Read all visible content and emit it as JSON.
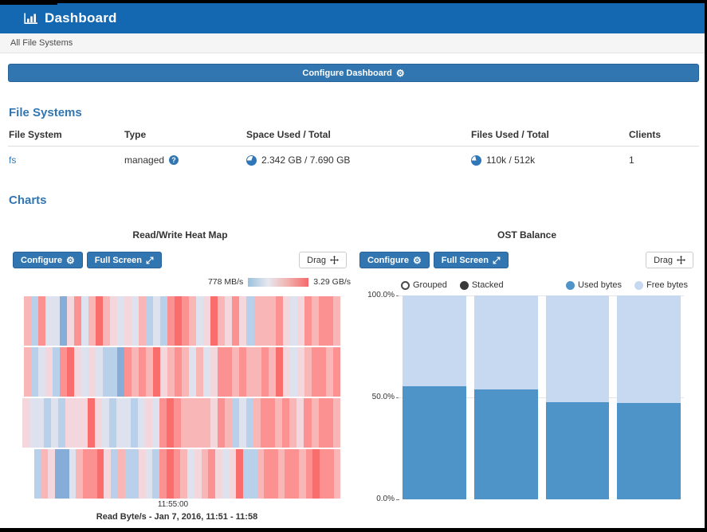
{
  "colors": {
    "navbar_bg": "#1467b1",
    "primary_button": "#3276b1",
    "primary_button_border": "#2a639a",
    "heading_text": "#3276b1",
    "link_text": "#3276b1",
    "breadcrumb_bg": "#f5f5f5",
    "pie_blue": "#2f77b8",
    "used_bar": "#4f94c8",
    "free_bar": "#c6d9f0"
  },
  "icons": {
    "gear": "⚙",
    "help": "?"
  },
  "navbar": {
    "title": "Dashboard"
  },
  "breadcrumb": {
    "label": "All File Systems"
  },
  "toolbar": {
    "configure_dashboard_label": "Configure Dashboard"
  },
  "file_systems": {
    "heading": "File Systems",
    "columns": [
      "File System",
      "Type",
      "Space Used / Total",
      "Files Used / Total",
      "Clients"
    ],
    "rows": [
      {
        "name": "fs",
        "type": "managed",
        "space": "2.342 GB / 7.690 GB",
        "space_used_pct": 30,
        "files": "110k / 512k",
        "files_used_pct": 21,
        "clients": "1"
      }
    ]
  },
  "charts": {
    "heading": "Charts",
    "buttons": {
      "configure": "Configure",
      "full_screen": "Full Screen",
      "drag": "Drag"
    }
  },
  "chart_data": [
    {
      "type": "heatmap",
      "title": "Read/Write Heat Map",
      "caption": "Read Byte/s - Jan 7, 2016, 11:51 - 11:58",
      "x_ticks": [
        "11:55:00"
      ],
      "legend": {
        "min": "778 MB/s",
        "max": "3.29 GB/s",
        "gradient": [
          "#9bc1de",
          "#e6e8ef",
          "#f2b0ad",
          "#f4696b"
        ]
      },
      "palette": {
        "B2": "#85add8",
        "B1": "#b9d0ea",
        "L": "#dde2ee",
        "P1": "#f3d7dc",
        "P2": "#f9b6b6",
        "R1": "#fb9191",
        "R2": "#fa6d6d"
      },
      "rows": [
        [
          "P2",
          "B1",
          "R1",
          "L",
          "L",
          "B2",
          "P1",
          "R1",
          "L",
          "P2",
          "R2",
          "P2",
          "P1",
          "L",
          "P1",
          "L",
          "P2",
          "B1",
          "L",
          "B1",
          "R1",
          "R2",
          "R1",
          "P2",
          "L",
          "P1",
          "R2",
          "P2",
          "P1",
          "R1",
          "P1",
          "B1",
          "P2",
          "P2",
          "P2",
          "R1",
          "P1",
          "L",
          "P1",
          "R1",
          "P2",
          "R1",
          "R1",
          "P2"
        ],
        [
          "P2",
          "B1",
          "L",
          "P1",
          "B1",
          "R1",
          "R2",
          "P1",
          "L",
          "P1",
          "L",
          "B1",
          "B1",
          "B2",
          "R1",
          "P2",
          "R1",
          "P2",
          "R2",
          "P1",
          "P2",
          "R1",
          "P2",
          "L",
          "P2",
          "L",
          "P1",
          "R1",
          "R1",
          "P2",
          "R1",
          "P2",
          "P2",
          "R1",
          "P2",
          "R2",
          "P1",
          "L",
          "P1",
          "P2",
          "R1",
          "R1",
          "P2",
          "R1"
        ],
        [
          "P1",
          "L",
          "L",
          "B1",
          "L",
          "B1",
          "P1",
          "P1",
          "P1",
          "R2",
          "P1",
          "L",
          "B1",
          "L",
          "L",
          "B1",
          "L",
          "P1",
          "L",
          "R1",
          "R2",
          "R1",
          "P2",
          "P2",
          "P2",
          "P2",
          "P1",
          "R1",
          "P2",
          "B1",
          "L",
          "B1",
          "P2",
          "R1",
          "R1",
          "P2",
          "R1",
          "P2",
          "P1",
          "R1",
          "P2",
          "R1",
          "R1",
          "P2"
        ],
        [
          "B1",
          "P2",
          "P1",
          "B2",
          "B2",
          "L",
          "P2",
          "R1",
          "R1",
          "R2",
          "P1",
          "B1",
          "P2",
          "B1",
          "B1",
          "P1",
          "L",
          "B1",
          "R1",
          "R2",
          "R1",
          "P2",
          "L",
          "P1",
          "P2",
          "R1",
          "P1",
          "L",
          "P1",
          "R2",
          "B1",
          "B1",
          "P2",
          "R1",
          "R1",
          "P2",
          "R1",
          "R1",
          "P2",
          "R1",
          "R2",
          "R1",
          "R1",
          "P2"
        ]
      ],
      "row_left": [
        20,
        20,
        18,
        33
      ],
      "row_width": [
        397,
        397,
        399,
        384
      ]
    },
    {
      "type": "bar",
      "stacked": true,
      "title": "OST Balance",
      "controls": {
        "grouped": "Grouped",
        "stacked": "Stacked"
      },
      "categories": [
        "",
        "",
        "",
        ""
      ],
      "series": [
        {
          "name": "Used bytes",
          "color": "#4f94c8",
          "values": [
            55.5,
            53.8,
            47.8,
            47.3
          ]
        },
        {
          "name": "Free bytes",
          "color": "#c6d9f0",
          "values": [
            44.5,
            46.2,
            52.2,
            52.7
          ]
        }
      ],
      "ylim": [
        0,
        100
      ],
      "yticks": [
        "100.0%",
        "50.0%",
        "0.0%"
      ],
      "legend_position": "top"
    }
  ]
}
